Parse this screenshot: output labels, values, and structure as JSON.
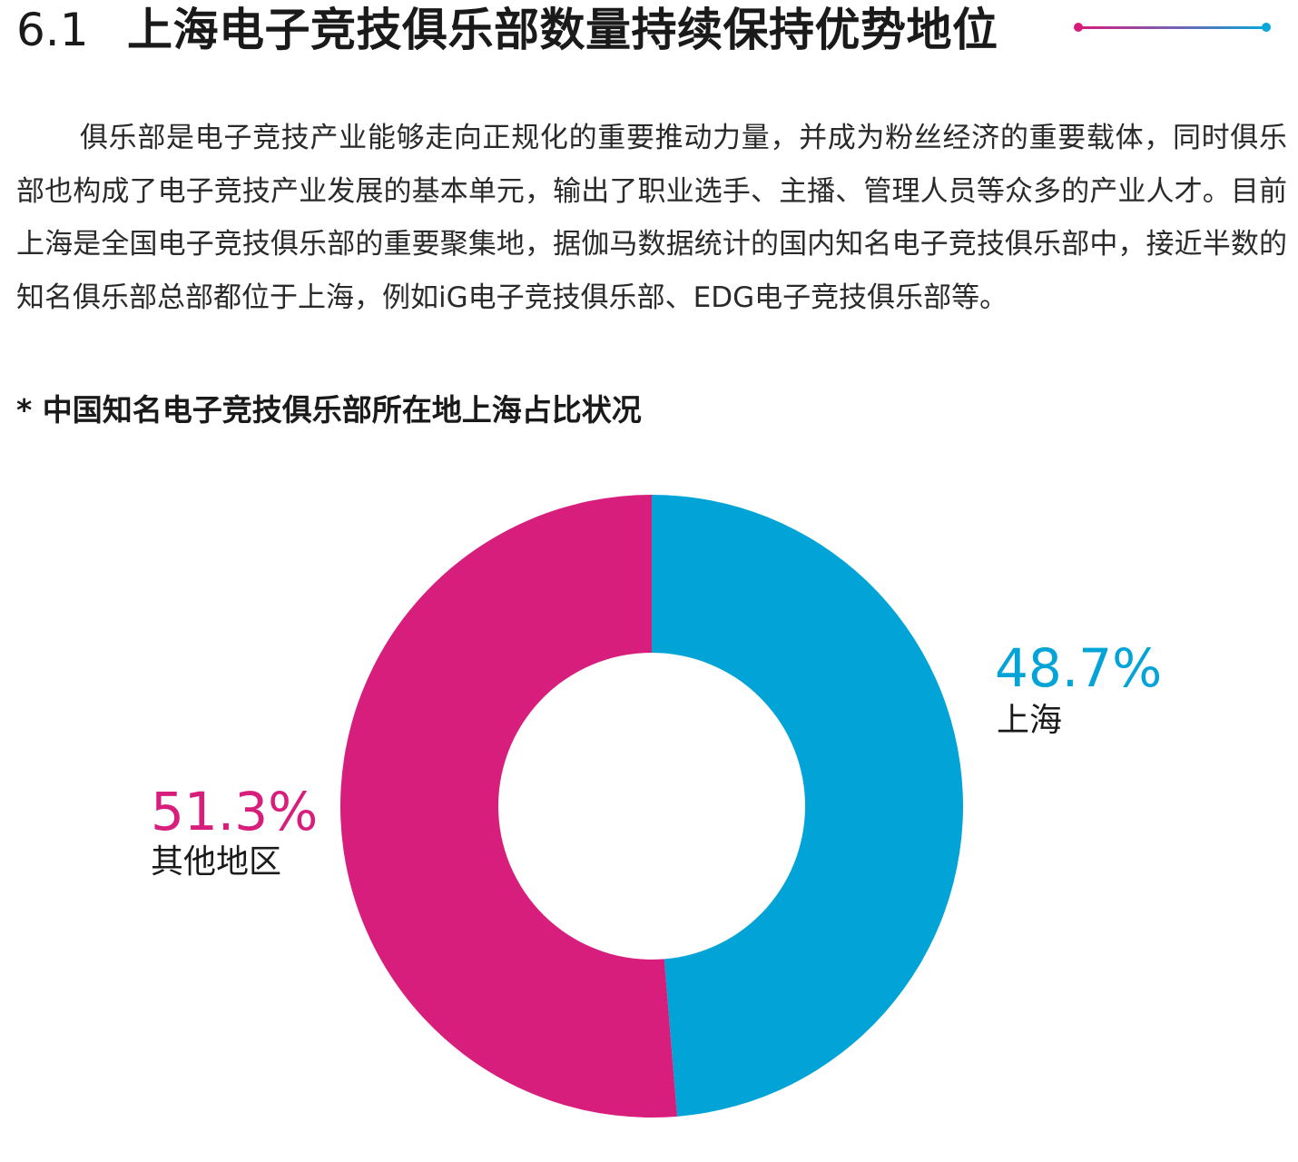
{
  "section": {
    "number": "6.1",
    "title": "上海电子竞技俱乐部数量持续保持优势地位"
  },
  "body": {
    "paragraph": "俱乐部是电子竞技产业能够走向正规化的重要推动力量，并成为粉丝经济的重要载体，同时俱乐部也构成了电子竞技产业发展的基本单元，输出了职业选手、主播、管理人员等众多的产业人才。目前上海是全国电子竞技俱乐部的重要聚集地，据伽马数据统计的国内知名电子竞技俱乐部中，接近半数的知名俱乐部总部都位于上海，例如iG电子竞技俱乐部、EDG电子竞技俱乐部等。"
  },
  "colors": {
    "shanghai": "#02a4d8",
    "other": "#d81e7c",
    "accent_gradient_start": "#d81b7b",
    "accent_gradient_end": "#06a7d9"
  },
  "chart_data": {
    "type": "pie",
    "title": "* 中国知名电子竞技俱乐部所在地上海占比状况",
    "slices": [
      {
        "name": "上海",
        "value": 48.7,
        "label": "48.7%",
        "color": "#02a4d8"
      },
      {
        "name": "其他地区",
        "value": 51.3,
        "label": "51.3%",
        "color": "#d81e7c"
      }
    ],
    "unit": "%",
    "donut": true
  }
}
